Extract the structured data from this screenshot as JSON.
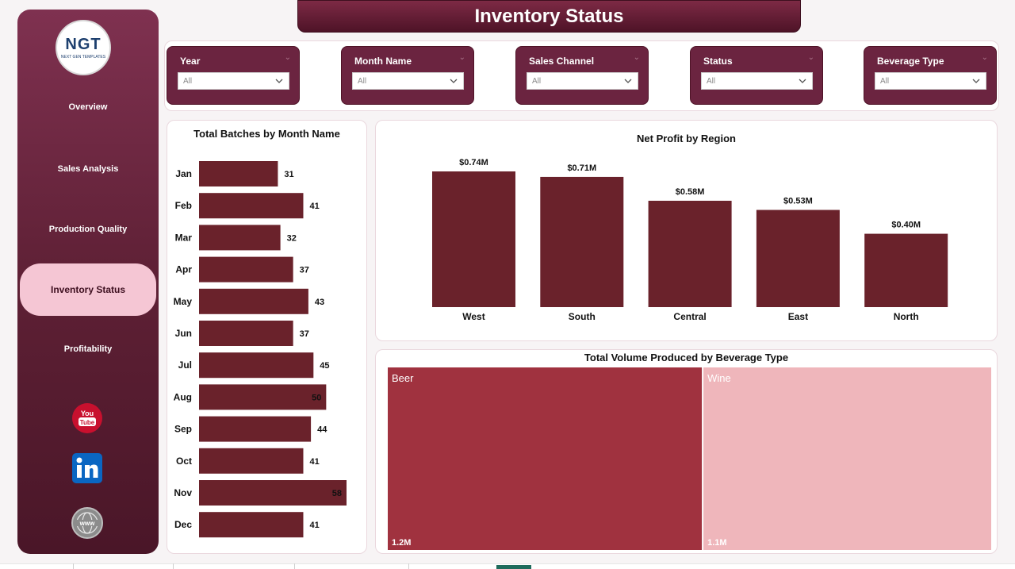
{
  "page_title": "Inventory Status",
  "logo": {
    "main": "NGT",
    "sub": "NEXT GEN TEMPLATES"
  },
  "nav": [
    {
      "label": "Overview"
    },
    {
      "label": "Sales Analysis"
    },
    {
      "label": "Production Quality"
    },
    {
      "label": "Inventory Status",
      "active": true
    },
    {
      "label": "Profitability"
    }
  ],
  "social": [
    "youtube-icon",
    "linkedin-icon",
    "globe-icon"
  ],
  "slicers": [
    {
      "label": "Year",
      "value": "All"
    },
    {
      "label": "Month Name",
      "value": "All"
    },
    {
      "label": "Sales Channel",
      "value": "All"
    },
    {
      "label": "Status",
      "value": "All"
    },
    {
      "label": "Beverage Type",
      "value": "All"
    }
  ],
  "colors": {
    "bar": "#6a222b",
    "treemap_beer": "#a0323f",
    "treemap_wine": "#efb6bb",
    "accent": "#6b2440"
  },
  "chart_data": [
    {
      "type": "bar",
      "orientation": "horizontal",
      "title": "Total Batches by Month Name",
      "categories": [
        "Jan",
        "Feb",
        "Mar",
        "Apr",
        "May",
        "Jun",
        "Jul",
        "Aug",
        "Sep",
        "Oct",
        "Nov",
        "Dec"
      ],
      "values": [
        31,
        41,
        32,
        37,
        43,
        37,
        45,
        50,
        44,
        41,
        58,
        41
      ],
      "xlim": [
        0,
        58
      ]
    },
    {
      "type": "bar",
      "orientation": "vertical",
      "title": "Net Profit by Region",
      "categories": [
        "West",
        "South",
        "Central",
        "East",
        "North"
      ],
      "values": [
        0.74,
        0.71,
        0.58,
        0.53,
        0.4
      ],
      "labels": [
        "$0.74M",
        "$0.71M",
        "$0.58M",
        "$0.53M",
        "$0.40M"
      ],
      "ylim": [
        0,
        0.74
      ]
    },
    {
      "type": "treemap",
      "title": "Total Volume Produced by Beverage Type",
      "categories": [
        "Beer",
        "Wine"
      ],
      "values": [
        1.2,
        1.1
      ],
      "labels": [
        "1.2M",
        "1.1M"
      ]
    }
  ]
}
